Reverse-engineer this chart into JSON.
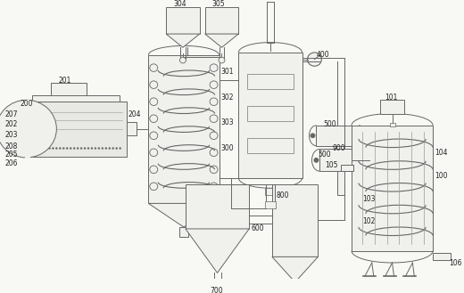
{
  "bg": "#f8f8f5",
  "lc": "#666666",
  "lc2": "#888888",
  "fc_main": "#f0f0ed",
  "fc_light": "#e8e8e4",
  "tc": "#222222",
  "lw": 0.7,
  "fig_w": 5.2,
  "fig_h": 3.29,
  "dpi": 100
}
